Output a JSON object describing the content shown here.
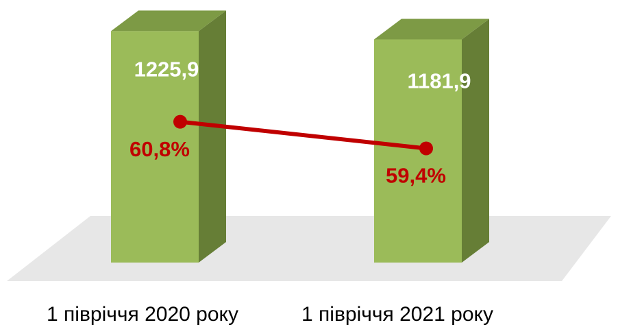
{
  "chart_data": {
    "type": "bar3d_line",
    "categories": [
      "1 півріччя 2020 року",
      "1 півріччя 2021 року"
    ],
    "series": [
      {
        "type": "bar",
        "color": "#9bbb59",
        "values": [
          1225.9,
          1181.9
        ],
        "value_labels": [
          "1225,9",
          "1181,9"
        ]
      },
      {
        "type": "line",
        "axis": "y2",
        "color": "#c00000",
        "values": [
          60.8,
          59.4
        ],
        "value_labels": [
          "60,8%",
          "59,4%"
        ]
      }
    ],
    "ylim": [
      0,
      1300
    ],
    "y2lim": [
      53.4,
      66.3
    ],
    "grid": false
  }
}
